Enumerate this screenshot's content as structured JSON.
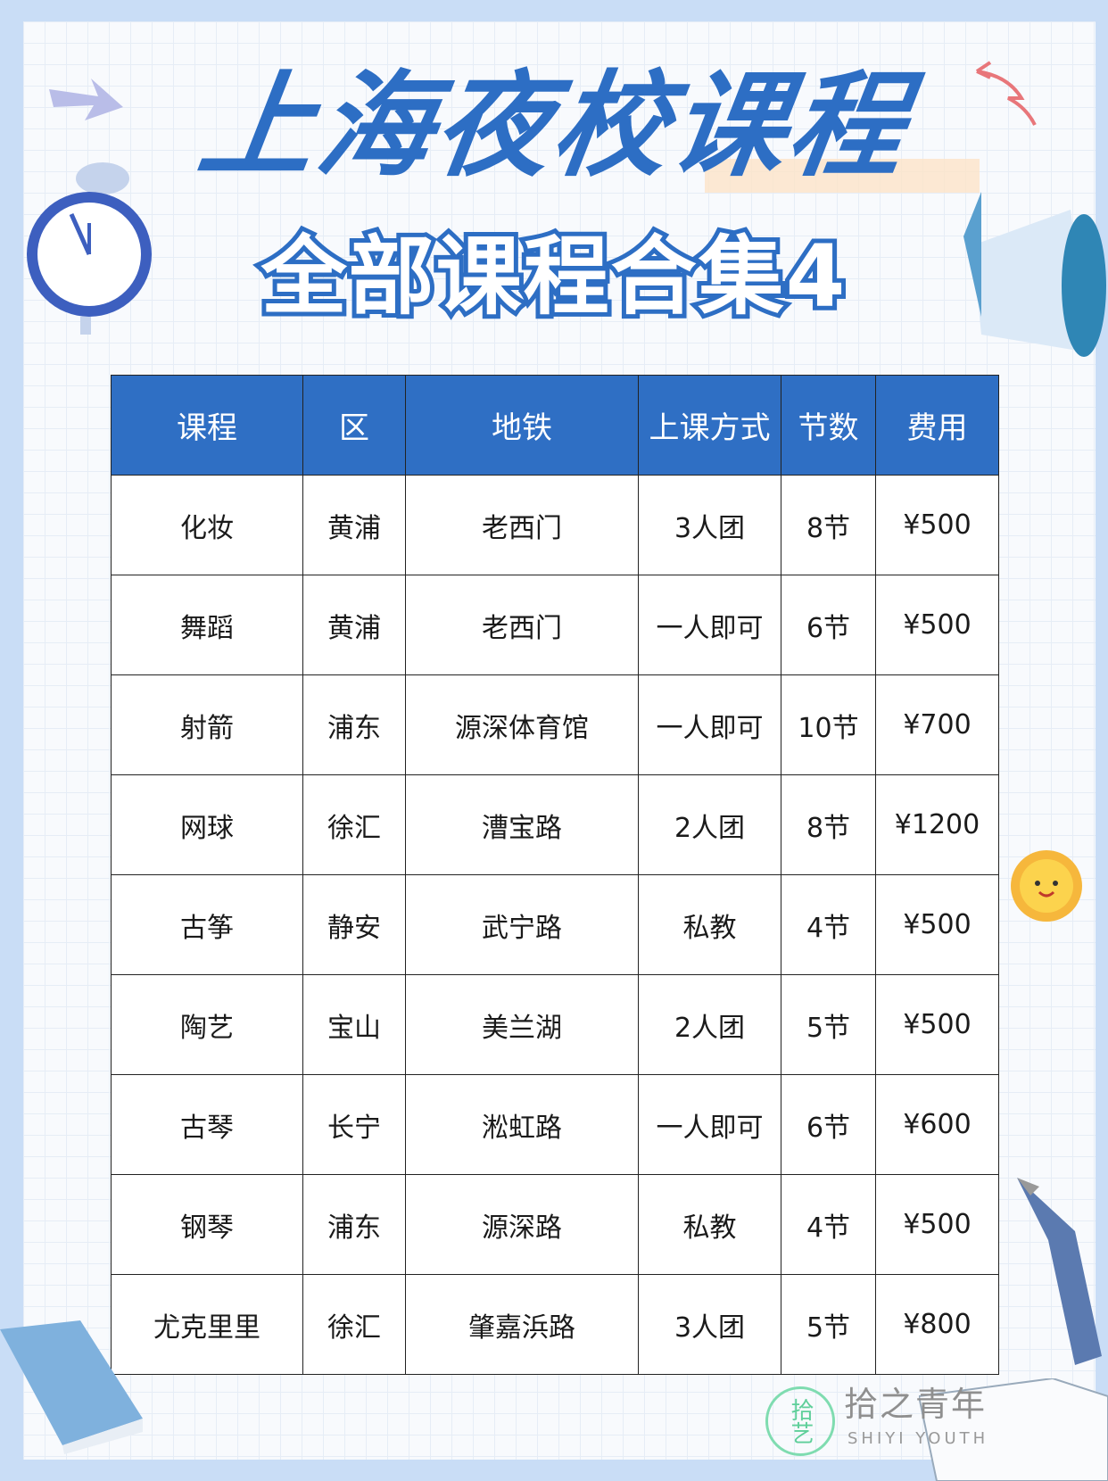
{
  "title": "上海夜校课程",
  "subtitle": "全部课程合集4",
  "table": {
    "headers": [
      "课程",
      "区",
      "地铁",
      "上课方式",
      "节数",
      "费用"
    ],
    "rows": [
      [
        "化妆",
        "黄浦",
        "老西门",
        "3人团",
        "8节",
        "¥500"
      ],
      [
        "舞蹈",
        "黄浦",
        "老西门",
        "一人即可",
        "6节",
        "¥500"
      ],
      [
        "射箭",
        "浦东",
        "源深体育馆",
        "一人即可",
        "10节",
        "¥700"
      ],
      [
        "网球",
        "徐汇",
        "漕宝路",
        "2人团",
        "8节",
        "¥1200"
      ],
      [
        "古筝",
        "静安",
        "武宁路",
        "私教",
        "4节",
        "¥500"
      ],
      [
        "陶艺",
        "宝山",
        "美兰湖",
        "2人团",
        "5节",
        "¥500"
      ],
      [
        "古琴",
        "长宁",
        "淞虹路",
        "一人即可",
        "6节",
        "¥600"
      ],
      [
        "钢琴",
        "浦东",
        "源深路",
        "私教",
        "4节",
        "¥500"
      ],
      [
        "尤克里里",
        "徐汇",
        "肇嘉浜路",
        "3人团",
        "5节",
        "¥800"
      ]
    ]
  },
  "watermark": {
    "logo_text": "拾艺",
    "name": "拾之青年",
    "sub": "SHIYI YOUTH"
  },
  "colors": {
    "accent": "#2d6ec4",
    "header_bg": "#2f6fc4",
    "border": "#c9ddf6"
  }
}
